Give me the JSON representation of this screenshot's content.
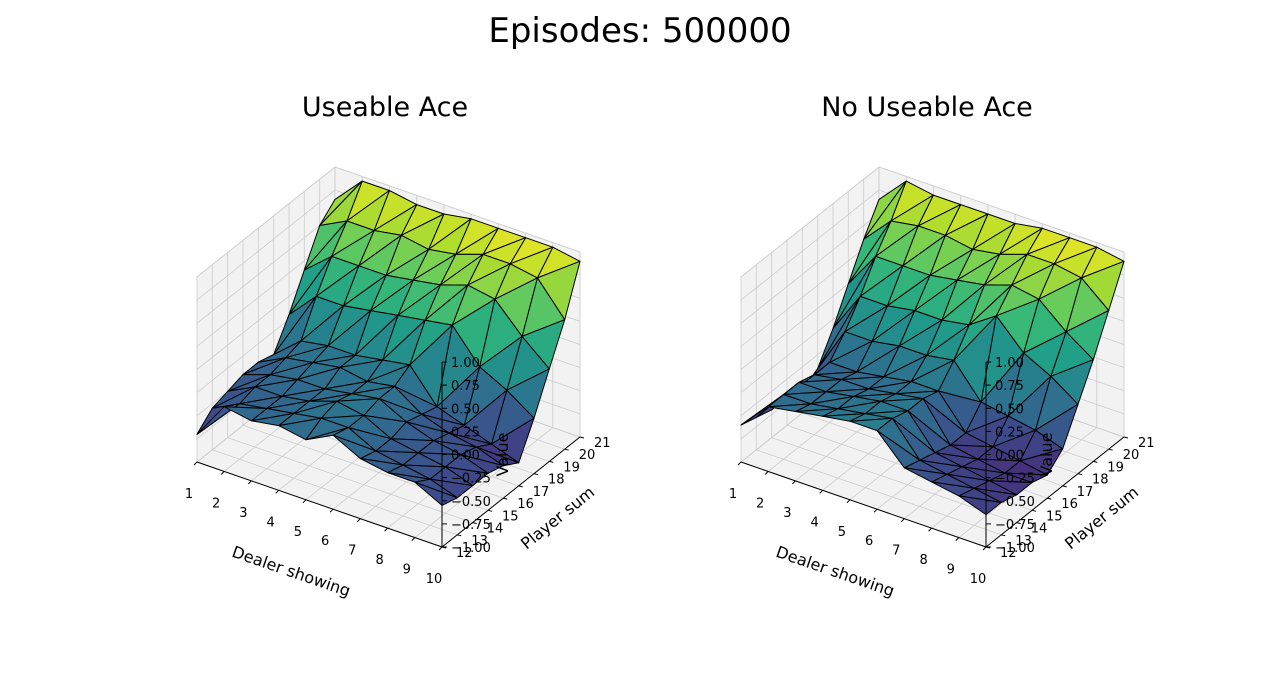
{
  "figure": {
    "suptitle": "Episodes: 500000"
  },
  "chart_data": [
    {
      "type": "surface",
      "title": "Useable Ace",
      "xlabel": "Dealer showing",
      "ylabel": "Player sum",
      "zlabel": "Value",
      "x": [
        1,
        2,
        3,
        4,
        5,
        6,
        7,
        8,
        9,
        10
      ],
      "y": [
        12,
        13,
        14,
        15,
        16,
        17,
        18,
        19,
        20,
        21
      ],
      "zlim": [
        -1.0,
        1.0
      ],
      "x_ticks": [
        "1",
        "2",
        "3",
        "4",
        "5",
        "6",
        "7",
        "8",
        "9",
        "10"
      ],
      "y_ticks": [
        "12",
        "13",
        "14",
        "15",
        "16",
        "17",
        "18",
        "19",
        "20",
        "21"
      ],
      "z_ticks": [
        "−1.00",
        "−0.75",
        "−0.50",
        "−0.25",
        "0.00",
        "0.25",
        "0.50",
        "0.75",
        "1.00"
      ],
      "z_rows_by_player_sum": [
        [
          -0.7,
          -0.3,
          -0.35,
          -0.3,
          -0.35,
          -0.2,
          -0.35,
          -0.4,
          -0.4,
          -0.55
        ],
        [
          -0.55,
          -0.4,
          -0.35,
          -0.3,
          -0.25,
          -0.25,
          -0.4,
          -0.45,
          -0.5,
          -0.6
        ],
        [
          -0.5,
          -0.35,
          -0.35,
          -0.3,
          -0.2,
          -0.25,
          -0.4,
          -0.45,
          -0.5,
          -0.6
        ],
        [
          -0.45,
          -0.35,
          -0.3,
          -0.3,
          -0.25,
          -0.2,
          -0.35,
          -0.45,
          -0.5,
          -0.6
        ],
        [
          -0.45,
          -0.3,
          -0.25,
          -0.2,
          -0.25,
          -0.2,
          -0.4,
          -0.5,
          -0.55,
          -0.65
        ],
        [
          -0.5,
          -0.25,
          -0.2,
          -0.2,
          -0.15,
          -0.1,
          -0.45,
          -0.55,
          -0.65,
          -0.75
        ],
        [
          -0.2,
          0.1,
          0.1,
          0.15,
          0.2,
          0.25,
          0.3,
          -0.05,
          -0.2,
          -0.4
        ],
        [
          0.15,
          0.4,
          0.4,
          0.4,
          0.45,
          0.5,
          0.6,
          0.55,
          0.25,
          0.0
        ],
        [
          0.5,
          0.65,
          0.65,
          0.7,
          0.65,
          0.7,
          0.8,
          0.8,
          0.75,
          0.4
        ],
        [
          0.65,
          0.95,
          0.95,
          0.9,
          0.9,
          0.95,
          0.95,
          0.95,
          0.95,
          0.9
        ]
      ]
    },
    {
      "type": "surface",
      "title": "No Useable Ace",
      "xlabel": "Dealer showing",
      "ylabel": "Player sum",
      "zlabel": "Value",
      "x": [
        1,
        2,
        3,
        4,
        5,
        6,
        7,
        8,
        9,
        10
      ],
      "y": [
        12,
        13,
        14,
        15,
        16,
        17,
        18,
        19,
        20,
        21
      ],
      "zlim": [
        -1.0,
        1.0
      ],
      "x_ticks": [
        "1",
        "2",
        "3",
        "4",
        "5",
        "6",
        "7",
        "8",
        "9",
        "10"
      ],
      "y_ticks": [
        "12",
        "13",
        "14",
        "15",
        "16",
        "17",
        "18",
        "19",
        "20",
        "21"
      ],
      "z_ticks": [
        "−1.00",
        "−0.75",
        "−0.50",
        "−0.25",
        "0.00",
        "0.25",
        "0.50",
        "0.75",
        "1.00"
      ],
      "z_rows_by_player_sum": [
        [
          -0.6,
          -0.3,
          -0.25,
          -0.2,
          -0.15,
          -0.15,
          -0.45,
          -0.5,
          -0.55,
          -0.65
        ],
        [
          -0.65,
          -0.3,
          -0.3,
          -0.25,
          -0.2,
          -0.15,
          -0.5,
          -0.55,
          -0.6,
          -0.65
        ],
        [
          -0.7,
          -0.3,
          -0.3,
          -0.25,
          -0.2,
          -0.2,
          -0.55,
          -0.6,
          -0.65,
          -0.7
        ],
        [
          -0.7,
          -0.35,
          -0.3,
          -0.3,
          -0.25,
          -0.2,
          -0.6,
          -0.65,
          -0.7,
          -0.7
        ],
        [
          -0.75,
          -0.35,
          -0.35,
          -0.3,
          -0.25,
          -0.25,
          -0.6,
          -0.65,
          -0.7,
          -0.75
        ],
        [
          -0.65,
          -0.15,
          -0.15,
          -0.1,
          -0.1,
          -0.05,
          -0.4,
          -0.45,
          -0.5,
          -0.6
        ],
        [
          -0.35,
          0.1,
          0.1,
          0.15,
          0.15,
          0.2,
          0.4,
          0.1,
          -0.05,
          -0.25
        ],
        [
          0.0,
          0.4,
          0.4,
          0.4,
          0.45,
          0.5,
          0.6,
          0.55,
          0.3,
          0.1
        ],
        [
          0.35,
          0.65,
          0.7,
          0.7,
          0.65,
          0.7,
          0.8,
          0.8,
          0.75,
          0.5
        ],
        [
          0.65,
          0.95,
          0.9,
          0.9,
          0.9,
          0.9,
          0.95,
          0.95,
          0.95,
          0.9
        ]
      ]
    }
  ],
  "colors": {
    "colormap": [
      "#440154",
      "#482878",
      "#3e4989",
      "#31688e",
      "#26828e",
      "#1f9e89",
      "#35b779",
      "#6ece58",
      "#b5de2b",
      "#fde725"
    ],
    "edge": "#000000",
    "pane": "#f2f2f2",
    "grid": "#cccccc"
  }
}
